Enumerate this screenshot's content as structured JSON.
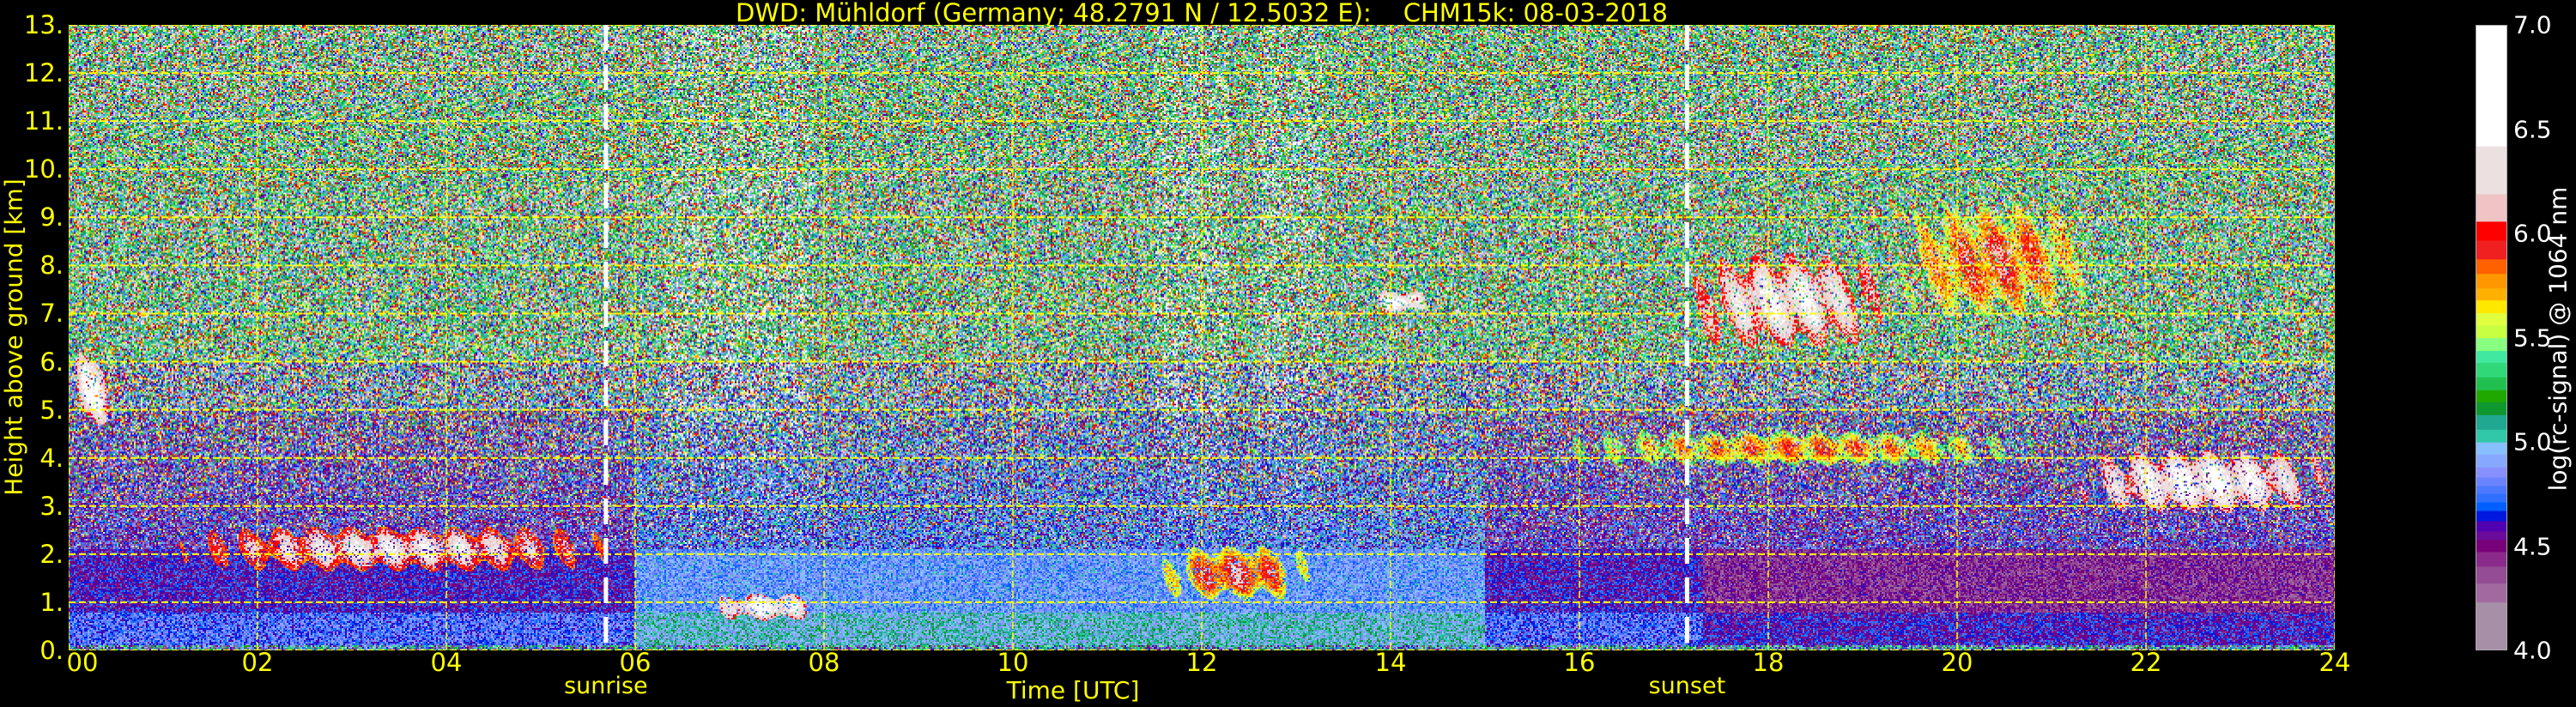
{
  "chart_data": {
    "type": "heatmap",
    "title": "DWD: Mühldorf (Germany; 48.2791 N / 12.5032 E):    CHM15k: 08-03-2018",
    "xlabel": "Time [UTC]",
    "ylabel": "Height above ground [km]",
    "xlim": [
      0,
      24
    ],
    "ylim": [
      0,
      13
    ],
    "x_ticks": [
      "00",
      "02",
      "04",
      "06",
      "08",
      "10",
      "12",
      "14",
      "16",
      "18",
      "20",
      "22",
      "24"
    ],
    "x_tick_values": [
      0,
      2,
      4,
      6,
      8,
      10,
      12,
      14,
      16,
      18,
      20,
      22,
      24
    ],
    "y_ticks": [
      "0.",
      "1.",
      "2.",
      "3.",
      "4.",
      "5.",
      "6.",
      "7.",
      "8.",
      "9.",
      "10.",
      "11.",
      "12.",
      "13."
    ],
    "y_tick_values": [
      0,
      1,
      2,
      3,
      4,
      5,
      6,
      7,
      8,
      9,
      10,
      11,
      12,
      13
    ],
    "grid": true,
    "grid_color": "#ffff00",
    "events": [
      {
        "label": "sunrise",
        "time": 5.69,
        "color": "#ffffff"
      },
      {
        "label": "sunset",
        "time": 17.14,
        "color": "#ffffff"
      }
    ],
    "colorbar": {
      "label": "log(rc-signal) @ 1064 nm",
      "range": [
        4.0,
        7.0
      ],
      "ticks": [
        "4.0",
        "4.5",
        "5.0",
        "5.5",
        "6.0",
        "6.5",
        "7.0"
      ],
      "tick_values": [
        4.0,
        4.5,
        5.0,
        5.5,
        6.0,
        6.5,
        7.0
      ],
      "levels": [
        [
          4.0,
          "#a88fa8"
        ],
        [
          4.23,
          "#a06aa0"
        ],
        [
          4.32,
          "#944c94"
        ],
        [
          4.4,
          "#8a2a8a"
        ],
        [
          4.47,
          "#780078"
        ],
        [
          4.53,
          "#6a0a9a"
        ],
        [
          4.57,
          "#5000b0"
        ],
        [
          4.62,
          "#0018e0"
        ],
        [
          4.67,
          "#0060ff"
        ],
        [
          4.71,
          "#3070ff"
        ],
        [
          4.75,
          "#4c78ff"
        ],
        [
          4.79,
          "#6a84ff"
        ],
        [
          4.83,
          "#8890ff"
        ],
        [
          4.88,
          "#88a8ff"
        ],
        [
          4.94,
          "#88c0ff"
        ],
        [
          5.0,
          "#30c8a8"
        ],
        [
          5.06,
          "#20a890"
        ],
        [
          5.13,
          "#109830"
        ],
        [
          5.19,
          "#20a800"
        ],
        [
          5.25,
          "#20c050"
        ],
        [
          5.31,
          "#30d878"
        ],
        [
          5.38,
          "#40e8a0"
        ],
        [
          5.44,
          "#88ff80"
        ],
        [
          5.5,
          "#c8ff40"
        ],
        [
          5.56,
          "#e0ff40"
        ],
        [
          5.62,
          "#ffe800"
        ],
        [
          5.68,
          "#ffb000"
        ],
        [
          5.74,
          "#ff9800"
        ],
        [
          5.81,
          "#ff6000"
        ],
        [
          5.88,
          "#f02020"
        ],
        [
          5.97,
          "#ff0000"
        ],
        [
          6.06,
          "#f0c4c4"
        ],
        [
          6.19,
          "#ece0e0"
        ],
        [
          6.42,
          "#ffffff"
        ]
      ]
    },
    "features": [
      {
        "kind": "cloud",
        "time": [
          0.0,
          0.5
        ],
        "height": [
          4.6,
          6.3
        ],
        "value": 6.5
      },
      {
        "kind": "boundary-layer-top",
        "time": [
          1.0,
          5.9
        ],
        "height": [
          1.6,
          2.6
        ],
        "value": 6.3
      },
      {
        "kind": "cloud",
        "time": [
          6.8,
          8.0
        ],
        "height": [
          0.6,
          1.2
        ],
        "value": 6.5
      },
      {
        "kind": "cloud",
        "time": [
          11.5,
          13.2
        ],
        "height": [
          1.0,
          2.2
        ],
        "value": 6.0
      },
      {
        "kind": "cloud",
        "time": [
          13.8,
          14.4
        ],
        "height": [
          7.0,
          7.5
        ],
        "value": 6.6
      },
      {
        "kind": "cloud",
        "time": [
          17.1,
          19.3
        ],
        "height": [
          6.2,
          8.3
        ],
        "value": 6.4
      },
      {
        "kind": "cloud",
        "time": [
          19.3,
          21.5
        ],
        "height": [
          6.8,
          9.4
        ],
        "value": 5.9
      },
      {
        "kind": "aerosol-layer",
        "time": [
          15.6,
          21.0
        ],
        "height": [
          3.8,
          4.6
        ],
        "value": 5.8
      },
      {
        "kind": "cloud",
        "time": [
          21.2,
          24.0
        ],
        "height": [
          2.8,
          4.2
        ],
        "value": 6.5
      }
    ]
  }
}
